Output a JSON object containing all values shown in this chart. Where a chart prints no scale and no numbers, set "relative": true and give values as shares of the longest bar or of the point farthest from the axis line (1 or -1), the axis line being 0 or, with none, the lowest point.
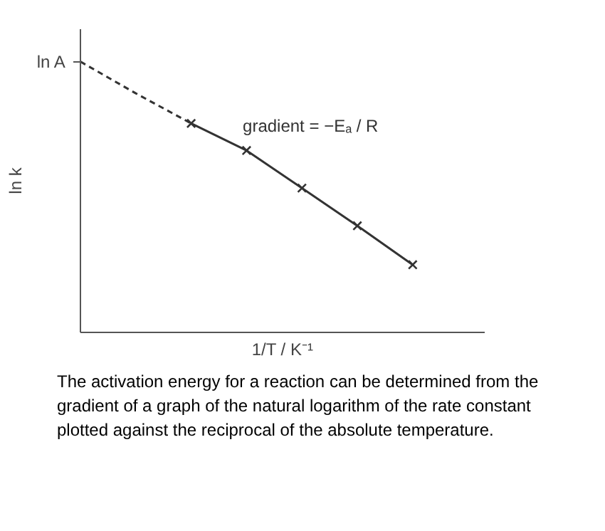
{
  "chart_data": {
    "type": "line",
    "relative": true,
    "xlabel": "1/T / K⁻¹",
    "ylabel": "ln k",
    "marker": "cross",
    "grid": false,
    "categories": [
      null,
      null,
      null,
      null,
      null,
      null,
      null
    ],
    "series": [
      {
        "color": "#333333",
        "values": [
          null,
          null,
          0.772,
          0.672,
          0.533,
          0.394,
          0.25
        ],
        "line_style": "solid"
      },
      {
        "color": "#333333",
        "values": [
          1.0,
          0.883,
          0.772,
          null,
          null,
          null,
          null
        ],
        "line_style": "dashed",
        "marker": "none"
      }
    ],
    "annotations": [
      "ln A",
      "gradient = −Eₐ / R",
      "The activation energy for a reaction can be determined from the gradient of a graph of the natural logarithm of the rate constant plotted against the reciprocal of the absolute temperature."
    ]
  }
}
